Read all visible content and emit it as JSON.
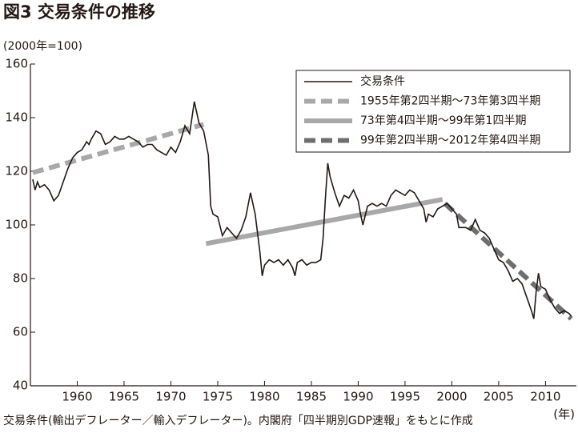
{
  "chart_data": {
    "type": "line",
    "title": "図3 交易条件の推移",
    "subtitle": "(2000年=100)",
    "x_label": "(年)",
    "footnote": "交易条件(輸出デフレーター／輸入デフレーター)。内閣府「四半期別GDP速報」をもとに作成",
    "xlim": [
      1955,
      2013.3
    ],
    "ylim": [
      40,
      160
    ],
    "xticks": [
      1960,
      1965,
      1970,
      1975,
      1980,
      1985,
      1990,
      1995,
      2000,
      2005,
      2010
    ],
    "yticks": [
      40,
      60,
      80,
      100,
      120,
      140,
      160
    ],
    "grid": false,
    "legend": "upper right",
    "series": [
      {
        "name": "交易条件",
        "color": "#231815",
        "style": "solid",
        "x": [
          1955.25,
          1955.5,
          1955.75,
          1956,
          1956.5,
          1957,
          1957.5,
          1958,
          1958.5,
          1959,
          1959.5,
          1960,
          1960.5,
          1961,
          1961.25,
          1961.5,
          1962,
          1962.5,
          1963,
          1963.5,
          1964,
          1964.5,
          1965,
          1965.5,
          1966,
          1966.5,
          1967,
          1967.5,
          1968,
          1968.5,
          1969,
          1969.5,
          1970,
          1970.5,
          1971,
          1971.5,
          1972,
          1972.5,
          1973,
          1973.5,
          1974,
          1974.25,
          1974.5,
          1975,
          1975.5,
          1976,
          1976.5,
          1977,
          1977.5,
          1978,
          1978.5,
          1979,
          1979.5,
          1979.75,
          1980,
          1980.5,
          1981,
          1981.5,
          1982,
          1982.5,
          1983,
          1983.25,
          1983.5,
          1984,
          1984.5,
          1985,
          1985.5,
          1986,
          1986.25,
          1986.5,
          1986.75,
          1987,
          1987.5,
          1988,
          1988.5,
          1989,
          1989.5,
          1990,
          1990.25,
          1990.5,
          1991,
          1991.5,
          1992,
          1992.5,
          1993,
          1993.5,
          1994,
          1994.5,
          1995,
          1995.5,
          1996,
          1996.5,
          1997,
          1997.25,
          1997.5,
          1998,
          1998.5,
          1999,
          1999.5,
          2000,
          2000.5,
          2000.75,
          2001,
          2001.5,
          2002,
          2002.5,
          2003,
          2003.5,
          2004,
          2004.5,
          2005,
          2005.5,
          2006,
          2006.5,
          2007,
          2007.5,
          2008,
          2008.5,
          2008.75,
          2009,
          2009.25,
          2009.5,
          2010,
          2010.5,
          2011,
          2011.5,
          2012,
          2012.5,
          2012.75
        ],
        "values": [
          117,
          113,
          116,
          114,
          115,
          113,
          109,
          111,
          116,
          121,
          125,
          127,
          128,
          131,
          130,
          132,
          135,
          134,
          130,
          131,
          133,
          132,
          132,
          133,
          132,
          131,
          129,
          130,
          130,
          128,
          127,
          126,
          129,
          127,
          131,
          137,
          134,
          146,
          138,
          135,
          126,
          107,
          104,
          103,
          96,
          99,
          97,
          95,
          98,
          103,
          112,
          104,
          90,
          81,
          85,
          87,
          86,
          87,
          85,
          87,
          84,
          81,
          86,
          87,
          85,
          86,
          86,
          87,
          95,
          110,
          123,
          118,
          112,
          107,
          111,
          110,
          113,
          109,
          104,
          100,
          107,
          108,
          107,
          108,
          107,
          111,
          113,
          112,
          111,
          113,
          112,
          109,
          106,
          101,
          104,
          103,
          106,
          107,
          108,
          106,
          104,
          99,
          99,
          99,
          98,
          102,
          98,
          97,
          95,
          91,
          87,
          86,
          83,
          79,
          80,
          78,
          73,
          68,
          65,
          75,
          82,
          77,
          76,
          72,
          69,
          67,
          68,
          67,
          66
        ]
      },
      {
        "name": "1955年第2四半期～73年第3四半期",
        "color": "#a8a8a8",
        "style": "dashed",
        "x": [
          1955.25,
          1973.5
        ],
        "values": [
          119.5,
          137.5
        ]
      },
      {
        "name": "73年第4四半期～99年第1四半期",
        "color": "#a8a8a8",
        "style": "solid",
        "x": [
          1973.75,
          1999
        ],
        "values": [
          93,
          109.5
        ]
      },
      {
        "name": "99年第2四半期～2012年第4四半期",
        "color": "#6e6e6e",
        "style": "dashed",
        "x": [
          1999.25,
          2012.75
        ],
        "values": [
          108,
          65
        ]
      }
    ]
  }
}
